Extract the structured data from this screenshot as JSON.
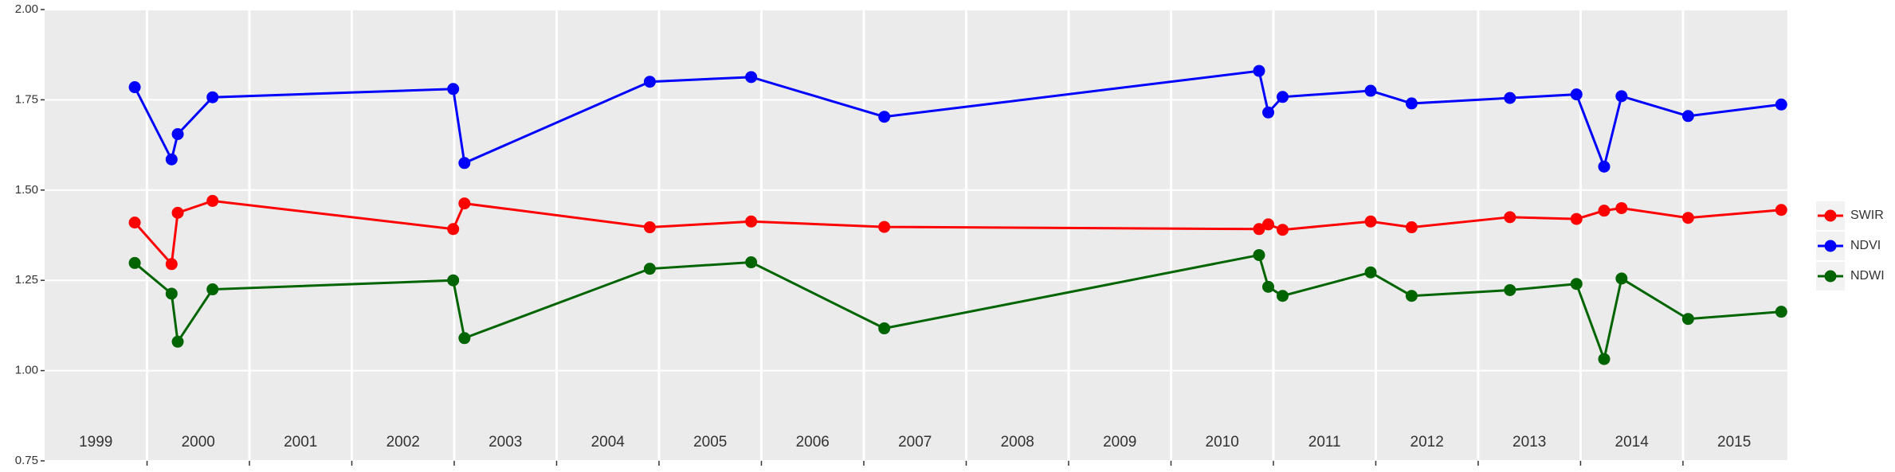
{
  "chart_data": {
    "type": "line",
    "x": [
      1999.88,
      2000.24,
      2000.3,
      2000.64,
      2002.99,
      2003.1,
      2004.91,
      2005.9,
      2007.2,
      2010.86,
      2010.95,
      2011.09,
      2011.95,
      2012.35,
      2013.31,
      2013.96,
      2014.23,
      2014.4,
      2015.05,
      2015.96
    ],
    "series": [
      {
        "name": "SWIR",
        "color": "#ff0000",
        "values": [
          1.41,
          1.295,
          1.437,
          1.47,
          1.392,
          1.463,
          1.397,
          1.413,
          1.398,
          1.392,
          1.405,
          1.39,
          1.413,
          1.397,
          1.425,
          1.42,
          1.443,
          1.45,
          1.423,
          1.445
        ]
      },
      {
        "name": "NDVI",
        "color": "#0000ff",
        "values": [
          1.785,
          1.585,
          1.655,
          1.757,
          1.78,
          1.575,
          1.8,
          1.813,
          1.703,
          1.83,
          1.715,
          1.758,
          1.775,
          1.74,
          1.755,
          1.765,
          1.565,
          1.76,
          1.705,
          1.737
        ]
      },
      {
        "name": "NDWI",
        "color": "#006400",
        "values": [
          1.298,
          1.213,
          1.08,
          1.225,
          1.25,
          1.09,
          1.282,
          1.3,
          1.117,
          1.32,
          1.232,
          1.207,
          1.272,
          1.207,
          1.223,
          1.24,
          1.032,
          1.255,
          1.143,
          1.163
        ]
      }
    ],
    "xlim": [
      1999.0,
      2016.02
    ],
    "xticks": [
      {
        "value": 1999.5,
        "label": "1999"
      },
      {
        "value": 2000.5,
        "label": "2000"
      },
      {
        "value": 2001.5,
        "label": "2001"
      },
      {
        "value": 2002.5,
        "label": "2002"
      },
      {
        "value": 2003.5,
        "label": "2003"
      },
      {
        "value": 2004.5,
        "label": "2004"
      },
      {
        "value": 2005.5,
        "label": "2005"
      },
      {
        "value": 2006.5,
        "label": "2006"
      },
      {
        "value": 2007.5,
        "label": "2007"
      },
      {
        "value": 2008.5,
        "label": "2008"
      },
      {
        "value": 2009.5,
        "label": "2009"
      },
      {
        "value": 2010.5,
        "label": "2010"
      },
      {
        "value": 2011.5,
        "label": "2011"
      },
      {
        "value": 2012.5,
        "label": "2012"
      },
      {
        "value": 2013.5,
        "label": "2013"
      },
      {
        "value": 2014.5,
        "label": "2014"
      },
      {
        "value": 2015.5,
        "label": "2015"
      }
    ],
    "xgrid": [
      2000,
      2001,
      2002,
      2003,
      2004,
      2005,
      2006,
      2007,
      2008,
      2009,
      2010,
      2011,
      2012,
      2013,
      2014,
      2015
    ],
    "ylim": [
      0.75,
      2.0
    ],
    "yticks": [
      0.75,
      {
        "value": 1.0,
        "label": "1.00"
      },
      1.25,
      {
        "value": 1.5,
        "label": "1.50"
      },
      1.75,
      {
        "value": 2.0,
        "label": "2.00"
      }
    ],
    "grid": true,
    "legend": "right"
  }
}
